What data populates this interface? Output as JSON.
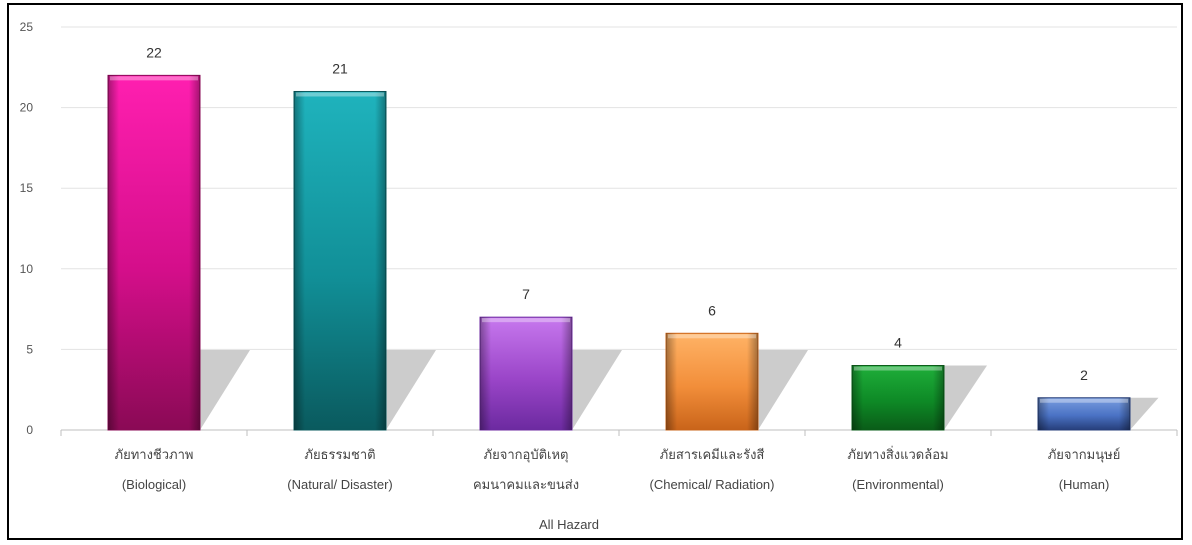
{
  "chart_data": {
    "type": "bar",
    "categories": [
      [
        "ภัยทางชีวภาพ",
        "(Biological)"
      ],
      [
        "ภัยธรรมชาติ",
        "(Natural/ Disaster)"
      ],
      [
        "ภัยจากอุบัติเหตุ",
        "คมนาคมและขนส่ง"
      ],
      [
        "ภัยสารเคมีและรังสี",
        "(Chemical/ Radiation)"
      ],
      [
        "ภัยทางสิ่งแวดล้อม",
        "(Environmental)"
      ],
      [
        "ภัยจากมนุษย์",
        "(Human)"
      ]
    ],
    "values": [
      22,
      21,
      7,
      6,
      4,
      2
    ],
    "data_labels": [
      "22",
      "21",
      "7",
      "6",
      "4",
      "2"
    ],
    "xlabel": "All Hazard",
    "ylabel": "",
    "ylim": [
      0,
      25
    ],
    "yticks": [
      "0",
      "5",
      "10",
      "15",
      "20",
      "25"
    ],
    "grid": true,
    "legend": "none",
    "bar_colors": [
      {
        "light": "#ff1fb0",
        "mid": "#d40e8a",
        "dark": "#8a0a55"
      },
      {
        "light": "#1fb3bd",
        "mid": "#118f97",
        "dark": "#0a5a5e"
      },
      {
        "light": "#c778ee",
        "mid": "#9a45c8",
        "dark": "#6c2aa0"
      },
      {
        "light": "#ffb366",
        "mid": "#f28e3a",
        "dark": "#c9641a"
      },
      {
        "light": "#1fae3a",
        "mid": "#0e8a26",
        "dark": "#0a5c18"
      },
      {
        "light": "#7a9ee0",
        "mid": "#4a72c4",
        "dark": "#263e7a"
      }
    ]
  }
}
